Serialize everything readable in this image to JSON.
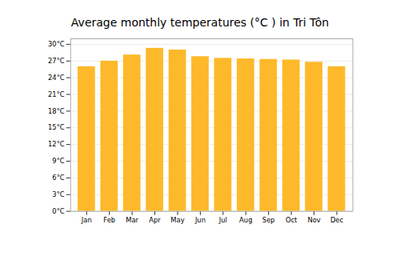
{
  "chart_data": {
    "type": "bar",
    "title": "Average monthly temperatures (°C ) in Tri Tôn",
    "categories": [
      "Jan",
      "Feb",
      "Mar",
      "Apr",
      "May",
      "Jun",
      "Jul",
      "Aug",
      "Sep",
      "Oct",
      "Nov",
      "Dec"
    ],
    "values": [
      26.0,
      27.0,
      28.1,
      29.3,
      29.0,
      27.8,
      27.5,
      27.4,
      27.3,
      27.2,
      26.8,
      26.0
    ],
    "color": "#FDB92A",
    "ylim": [
      0,
      31
    ],
    "yticks": [
      {
        "value": 0,
        "label": "0°C"
      },
      {
        "value": 3,
        "label": "3°C"
      },
      {
        "value": 6,
        "label": "6°C"
      },
      {
        "value": 9,
        "label": "9°C"
      },
      {
        "value": 12,
        "label": "12°C"
      },
      {
        "value": 15,
        "label": "15°C"
      },
      {
        "value": 18,
        "label": "18°C"
      },
      {
        "value": 21,
        "label": "21°C"
      },
      {
        "value": 24,
        "label": "24°C"
      },
      {
        "value": 27,
        "label": "27°C"
      },
      {
        "value": 30,
        "label": "30°C"
      }
    ],
    "grid": true
  }
}
